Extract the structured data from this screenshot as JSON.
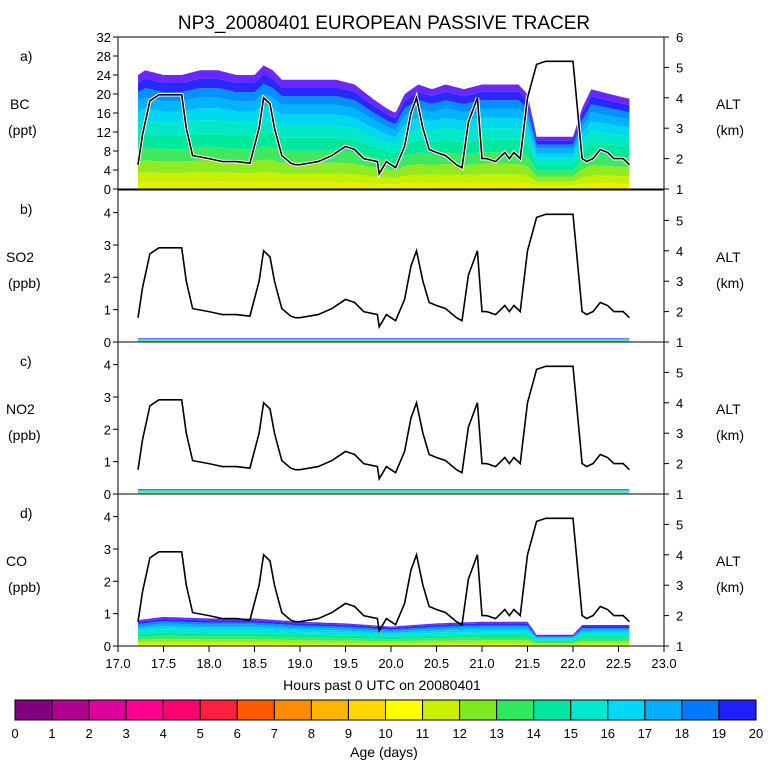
{
  "title": "NP3_20080401 EUROPEAN PASSIVE TRACER",
  "x_axis": {
    "label": "Hours past 0 UTC on 20080401",
    "range": [
      17.0,
      23.0
    ],
    "ticks": [
      "17.0",
      "17.5",
      "18.0",
      "18.5",
      "19.0",
      "19.5",
      "20.0",
      "20.5",
      "21.0",
      "21.5",
      "22.0",
      "22.5",
      "23.0"
    ]
  },
  "colorbar": {
    "label": "Age (days)",
    "ticks": [
      "0",
      "1",
      "2",
      "3",
      "4",
      "5",
      "6",
      "7",
      "8",
      "9",
      "10",
      "11",
      "12",
      "13",
      "14",
      "15",
      "16",
      "17",
      "18",
      "19",
      "20"
    ],
    "colors": [
      "#800080",
      "#b0008f",
      "#e0009c",
      "#ff0090",
      "#ff0070",
      "#ff2040",
      "#ff5a00",
      "#ff8c00",
      "#ffb400",
      "#ffd800",
      "#ffff00",
      "#c8f000",
      "#80e820",
      "#30e860",
      "#00e8a0",
      "#00e8d0",
      "#00d8f8",
      "#00b0ff",
      "#0078ff",
      "#2020ff",
      "#6a28ff"
    ]
  },
  "right_axis": {
    "label": "ALT",
    "unit": "(km)",
    "range": [
      1,
      6
    ],
    "ticks": [
      "1",
      "2",
      "3",
      "4",
      "5",
      "6"
    ]
  },
  "panels": [
    {
      "letter": "a)",
      "species": "BC",
      "unit": "(ppt)",
      "ylim": [
        0,
        32
      ],
      "ticks": [
        "0",
        "4",
        "8",
        "12",
        "16",
        "20",
        "24",
        "28",
        "32"
      ]
    },
    {
      "letter": "b)",
      "species": "SO2",
      "unit": "(ppb)",
      "ylim": [
        0,
        4.7
      ],
      "ticks": [
        "0",
        "1",
        "2",
        "3",
        "4"
      ]
    },
    {
      "letter": "c)",
      "species": "NO2",
      "unit": "(ppb)",
      "ylim": [
        0,
        4.7
      ],
      "ticks": [
        "0",
        "1",
        "2",
        "3",
        "4"
      ]
    },
    {
      "letter": "d)",
      "species": "CO",
      "unit": "(ppb)",
      "ylim": [
        0,
        4.7
      ],
      "ticks": [
        "0",
        "1",
        "2",
        "3",
        "4"
      ]
    }
  ],
  "chart_data": {
    "type": "area",
    "title": "NP3_20080401 EUROPEAN PASSIVE TRACER",
    "xlabel": "Hours past 0 UTC on 20080401",
    "altitude_km": {
      "x": [
        17.22,
        17.27,
        17.35,
        17.45,
        17.6,
        17.7,
        17.75,
        17.82,
        18.0,
        18.15,
        18.3,
        18.45,
        18.55,
        18.6,
        18.67,
        18.72,
        18.8,
        18.9,
        18.95,
        19.0,
        19.2,
        19.35,
        19.5,
        19.6,
        19.7,
        19.85,
        19.87,
        19.95,
        20.05,
        20.15,
        20.22,
        20.28,
        20.35,
        20.42,
        20.5,
        20.6,
        20.72,
        20.78,
        20.85,
        20.95,
        21.0,
        21.05,
        21.15,
        21.25,
        21.3,
        21.35,
        21.42,
        21.5,
        21.6,
        21.7,
        21.8,
        21.9,
        22.0,
        22.1,
        22.15,
        22.22,
        22.3,
        22.38,
        22.45,
        22.55,
        22.62
      ],
      "y": [
        1.8,
        2.8,
        3.9,
        4.1,
        4.1,
        4.1,
        3.0,
        2.1,
        2.0,
        1.9,
        1.9,
        1.85,
        3.0,
        4.0,
        3.8,
        3.0,
        2.1,
        1.85,
        1.8,
        1.8,
        1.9,
        2.1,
        2.4,
        2.3,
        2.0,
        1.9,
        1.5,
        1.9,
        1.7,
        2.4,
        3.5,
        4.0,
        3.0,
        2.3,
        2.2,
        2.1,
        1.8,
        1.7,
        3.2,
        4.0,
        2.0,
        2.0,
        1.9,
        2.2,
        2.0,
        2.2,
        2.0,
        4.0,
        5.1,
        5.2,
        5.2,
        5.2,
        5.2,
        2.0,
        1.9,
        2.0,
        2.3,
        2.2,
        2.0,
        2.0,
        1.8
      ]
    },
    "BC_ppt_total": {
      "x": [
        17.22,
        17.3,
        17.5,
        17.7,
        17.9,
        18.1,
        18.3,
        18.5,
        18.6,
        18.7,
        18.8,
        19.0,
        19.2,
        19.4,
        19.6,
        19.8,
        19.95,
        20.05,
        20.15,
        20.3,
        20.45,
        20.6,
        20.8,
        21.0,
        21.2,
        21.4,
        21.5,
        21.6,
        21.8,
        22.0,
        22.1,
        22.2,
        22.4,
        22.62
      ],
      "y": [
        24,
        25,
        24,
        24,
        25,
        25,
        24,
        24,
        26,
        25,
        23,
        23,
        23,
        23,
        22,
        19,
        17,
        16,
        20,
        22,
        21,
        22,
        21,
        22,
        22,
        22,
        20,
        11,
        11,
        11,
        17,
        21,
        20,
        19
      ]
    },
    "CO_ppb_total": {
      "x": [
        17.22,
        17.5,
        18.0,
        18.5,
        19.0,
        19.5,
        20.0,
        20.5,
        21.0,
        21.5,
        21.6,
        22.0,
        22.1,
        22.62
      ],
      "y": [
        0.8,
        0.9,
        0.85,
        0.85,
        0.75,
        0.7,
        0.6,
        0.7,
        0.75,
        0.75,
        0.35,
        0.35,
        0.65,
        0.65
      ]
    },
    "SO2_ppb_total": 0.12,
    "NO2_ppb_total": 0.15
  }
}
